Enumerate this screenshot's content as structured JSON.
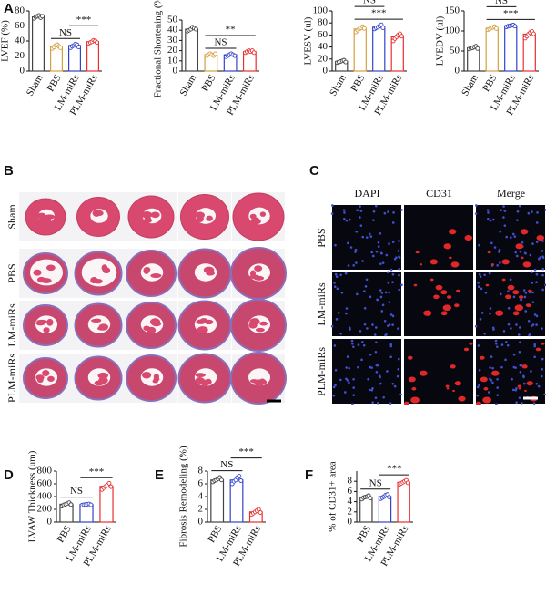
{
  "panel_labels": [
    "A",
    "B",
    "C",
    "D",
    "E",
    "F"
  ],
  "chart_data": [
    {
      "type": "bar",
      "y_label": "LVEF (%)",
      "categories": [
        "Sham",
        "PBS",
        "LM-miRs",
        "PLM-miRs"
      ],
      "colors": [
        "#444444",
        "#d4a040",
        "#3344cc",
        "#e83030"
      ],
      "values": [
        72,
        33,
        34,
        39
      ],
      "points": [
        [
          70,
          72,
          73,
          74,
          71,
          73
        ],
        [
          30,
          32,
          34,
          35,
          33,
          31
        ],
        [
          31,
          33,
          34,
          36,
          35,
          32
        ],
        [
          37,
          38,
          39,
          41,
          40,
          38
        ]
      ],
      "ylim": [
        0,
        80
      ],
      "yticks": [
        0,
        20,
        40,
        60,
        80
      ],
      "annotations": [
        {
          "text": "NS",
          "between": [
            "PBS",
            "LM-miRs"
          ]
        },
        {
          "text": "***",
          "between": [
            "LM-miRs",
            "PLM-miRs"
          ]
        }
      ]
    },
    {
      "type": "bar",
      "y_label": "Fractional Shortening (%)",
      "categories": [
        "Sham",
        "PBS",
        "LM-miRs",
        "PLM-miRs"
      ],
      "colors": [
        "#444444",
        "#d4a040",
        "#3344cc",
        "#e83030"
      ],
      "values": [
        41,
        16,
        16,
        19
      ],
      "points": [
        [
          39,
          40,
          41,
          43,
          42,
          41
        ],
        [
          15,
          16,
          17,
          16,
          15,
          17
        ],
        [
          14,
          15,
          16,
          17,
          16,
          15
        ],
        [
          18,
          19,
          20,
          19,
          20,
          18
        ]
      ],
      "ylim": [
        0,
        50
      ],
      "yticks": [
        0,
        10,
        20,
        30,
        40,
        50
      ],
      "annotations": [
        {
          "text": "NS",
          "between": [
            "PBS",
            "LM-miRs"
          ]
        },
        {
          "text": "**",
          "between": [
            "PBS",
            "PLM-miRs"
          ]
        }
      ]
    },
    {
      "type": "bar",
      "y_label": "LVESV (ul)",
      "categories": [
        "Sham",
        "PBS",
        "LM-miRs",
        "PLM-miRs"
      ],
      "colors": [
        "#444444",
        "#d4a040",
        "#3344cc",
        "#e83030"
      ],
      "values": [
        16,
        70,
        73,
        57
      ],
      "points": [
        [
          14,
          15,
          16,
          17,
          18,
          15
        ],
        [
          65,
          68,
          70,
          72,
          74,
          71
        ],
        [
          70,
          72,
          73,
          75,
          77,
          72
        ],
        [
          50,
          54,
          57,
          60,
          62,
          58
        ]
      ],
      "ylim": [
        0,
        100
      ],
      "yticks": [
        0,
        20,
        40,
        60,
        80,
        100
      ],
      "annotations": [
        {
          "text": "***",
          "between": [
            "PBS",
            "PLM-miRs"
          ]
        },
        {
          "text": "NS",
          "between": [
            "PBS",
            "LM-miRs"
          ]
        }
      ]
    },
    {
      "type": "bar",
      "y_label": "LVEDV (ul)",
      "categories": [
        "Sham",
        "PBS",
        "LM-miRs",
        "PLM-miRs"
      ],
      "colors": [
        "#444444",
        "#d4a040",
        "#3344cc",
        "#e83030"
      ],
      "values": [
        58,
        107,
        113,
        92
      ],
      "points": [
        [
          55,
          57,
          58,
          60,
          62,
          56
        ],
        [
          103,
          105,
          107,
          109,
          111,
          106
        ],
        [
          110,
          112,
          113,
          114,
          115,
          112
        ],
        [
          82,
          87,
          92,
          96,
          99,
          93
        ]
      ],
      "ylim": [
        0,
        150
      ],
      "yticks": [
        0,
        50,
        100,
        150
      ],
      "annotations": [
        {
          "text": "***",
          "between": [
            "PBS",
            "PLM-miRs"
          ]
        },
        {
          "text": "NS",
          "between": [
            "PBS",
            "LM-miRs"
          ]
        }
      ]
    },
    {
      "type": "bar",
      "y_label": "LVAW Thickness (um)",
      "categories": [
        "PBS",
        "LM-miRs",
        "PLM-miRs"
      ],
      "colors": [
        "#444444",
        "#3344cc",
        "#e83030"
      ],
      "values": [
        280,
        275,
        560
      ],
      "points": [
        [
          250,
          270,
          280,
          290,
          305,
          275
        ],
        [
          265,
          272,
          275,
          280,
          285,
          270
        ],
        [
          510,
          540,
          560,
          580,
          610,
          555
        ]
      ],
      "ylim": [
        0,
        800
      ],
      "yticks": [
        0,
        200,
        400,
        600,
        800
      ],
      "annotations": [
        {
          "text": "NS",
          "between": [
            "PBS",
            "LM-miRs"
          ]
        },
        {
          "text": "***",
          "between": [
            "LM-miRs",
            "PLM-miRs"
          ]
        }
      ]
    },
    {
      "type": "bar",
      "y_label": "Fibrosis Remodeling (%)",
      "categories": [
        "PBS",
        "LM-miRs",
        "PLM-miRs"
      ],
      "colors": [
        "#444444",
        "#3344cc",
        "#e83030"
      ],
      "values": [
        6.6,
        6.6,
        1.6
      ],
      "points": [
        [
          6.3,
          6.5,
          6.6,
          6.8,
          7.0,
          6.6
        ],
        [
          6.0,
          6.4,
          6.6,
          7.0,
          7.2,
          6.5
        ],
        [
          1.2,
          1.4,
          1.6,
          1.8,
          2.0,
          1.5
        ]
      ],
      "ylim": [
        0,
        8
      ],
      "yticks": [
        0,
        2,
        4,
        6,
        8
      ],
      "annotations": [
        {
          "text": "NS",
          "between": [
            "PBS",
            "LM-miRs"
          ]
        },
        {
          "text": "***",
          "between": [
            "LM-miRs",
            "PLM-miRs"
          ]
        }
      ]
    },
    {
      "type": "bar",
      "y_label": "% of CD31+ area",
      "categories": [
        "PBS",
        "LM-miRs",
        "PLM-miRs"
      ],
      "colors": [
        "#444444",
        "#3344cc",
        "#e83030"
      ],
      "values": [
        4.9,
        5.0,
        7.8
      ],
      "points": [
        [
          4.5,
          4.8,
          4.9,
          5.0,
          5.2,
          4.7
        ],
        [
          4.6,
          4.8,
          5.0,
          5.3,
          5.4,
          4.9
        ],
        [
          7.4,
          7.6,
          7.8,
          8.0,
          8.2,
          7.7
        ]
      ],
      "ylim": [
        0,
        10
      ],
      "yticks": [
        0,
        2,
        4,
        6,
        8
      ],
      "annotations": [
        {
          "text": "NS",
          "between": [
            "PBS",
            "LM-miRs"
          ]
        },
        {
          "text": "***",
          "between": [
            "LM-miRs",
            "PLM-miRs"
          ]
        }
      ]
    }
  ],
  "histology": {
    "rows": [
      "Sham",
      "PBS",
      "LM-miRs",
      "PLM-miRs"
    ]
  },
  "immunofluorescence": {
    "columns": [
      "DAPI",
      "CD31",
      "Merge"
    ],
    "rows": [
      "PBS",
      "LM-miRs",
      "PLM-miRs"
    ]
  }
}
